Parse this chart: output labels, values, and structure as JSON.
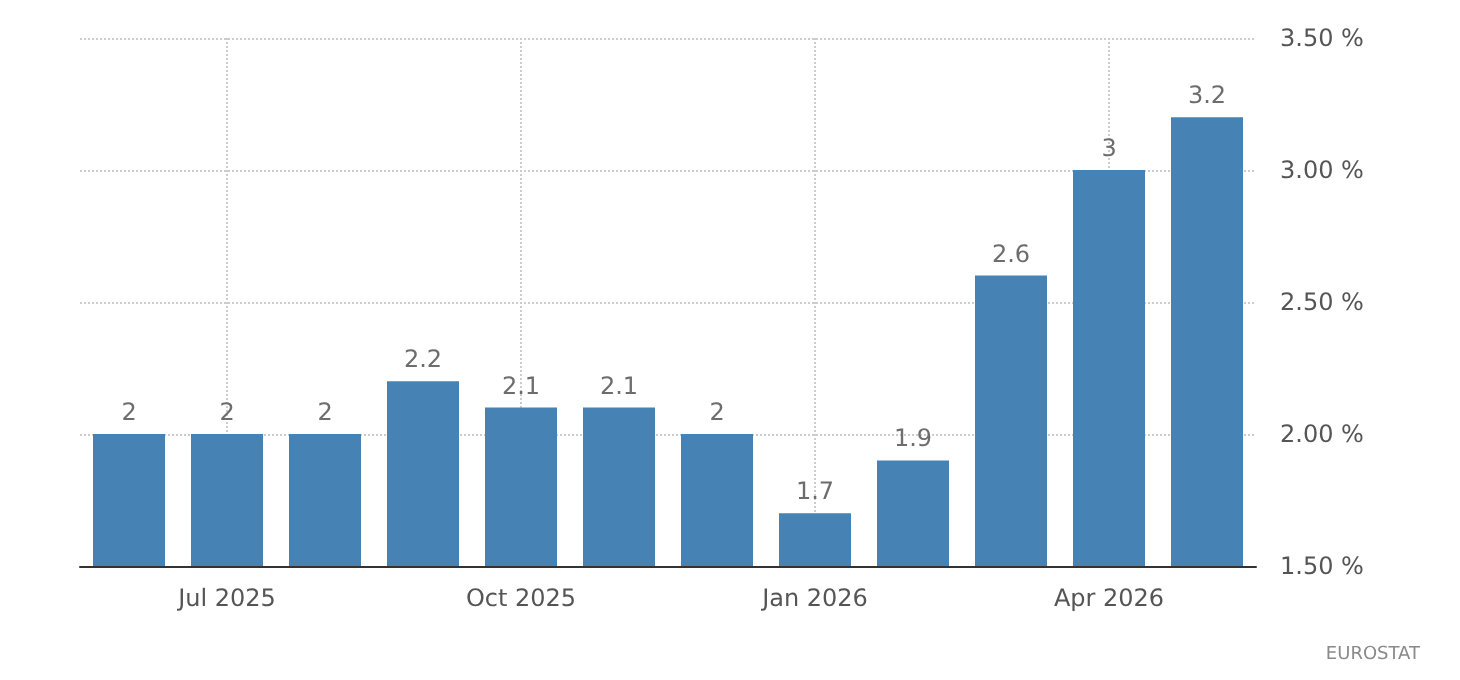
{
  "chart_data": {
    "type": "bar",
    "categories": [
      null,
      "Jul 2025",
      null,
      null,
      "Oct 2025",
      null,
      null,
      "Jan 2026",
      null,
      null,
      "Apr 2026",
      null
    ],
    "values": [
      2,
      2,
      2,
      2.2,
      2.1,
      2.1,
      2,
      1.7,
      1.9,
      2.6,
      3,
      3.2
    ],
    "color": "#4682b4",
    "ylim": [
      1.5,
      3.5
    ],
    "yticks": [
      {
        "value": 1.5,
        "label": "1.50 %"
      },
      {
        "value": 2,
        "label": "2.00 %"
      },
      {
        "value": 2.5,
        "label": "2.50 %"
      },
      {
        "value": 3,
        "label": "3.00 %"
      },
      {
        "value": 3.5,
        "label": "3.50 %"
      }
    ],
    "grid": true,
    "data_labels": true,
    "annotations": [
      "EUROSTAT"
    ]
  }
}
